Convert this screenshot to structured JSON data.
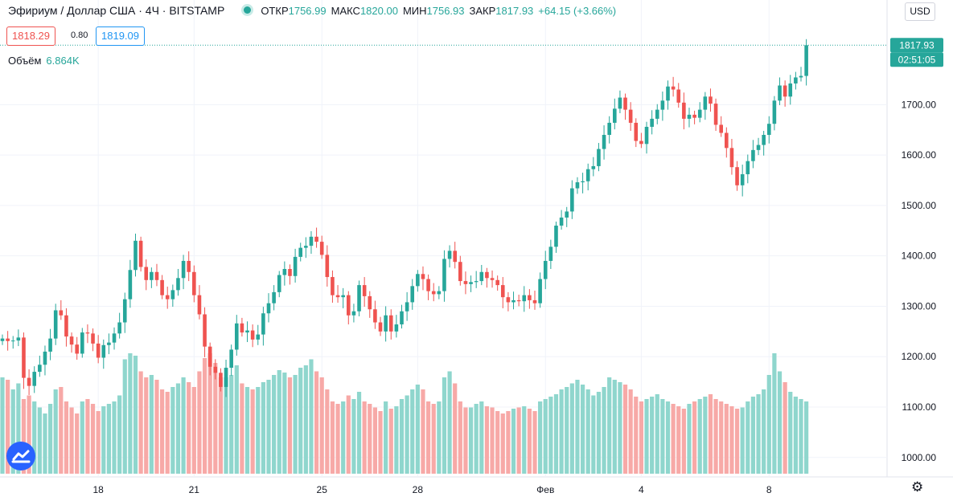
{
  "header": {
    "symbol": "Эфириум / Доллар США · 4Ч · BITSTAMP",
    "open_label": "ОТКР",
    "open": "1756.99",
    "high_label": "МАКС",
    "high": "1820.00",
    "low_label": "МИН",
    "low": "1756.93",
    "close_label": "ЗАКР",
    "close": "1817.93",
    "change": "+64.15 (+3.66%)"
  },
  "quote": {
    "bid": "1818.29",
    "spread": "0.80",
    "ask": "1819.09"
  },
  "volume": {
    "label": "Объём",
    "value": "6.864K"
  },
  "currency_button": "USD",
  "price_tag": {
    "price": "1817.93",
    "countdown": "02:51:05"
  },
  "colors": {
    "up": "#26a69a",
    "down": "#ef5350",
    "up_vol": "#8fd6cd",
    "down_vol": "#f7a9a7",
    "axis_text": "#131722"
  },
  "icons": {
    "logo": "tradingview-logo-icon",
    "settings": "gear-icon"
  },
  "chart_data": {
    "type": "candlestick",
    "ylim": [
      980,
      1880
    ],
    "y_ticks": [
      "1000.00",
      "1100.00",
      "1200.00",
      "1300.00",
      "1400.00",
      "1500.00",
      "1600.00",
      "1700.00"
    ],
    "x_ticks": [
      {
        "label": "18",
        "index": 18
      },
      {
        "label": "21",
        "index": 36
      },
      {
        "label": "25",
        "index": 60
      },
      {
        "label": "28",
        "index": 78
      },
      {
        "label": "Фев",
        "index": 102
      },
      {
        "label": "4",
        "index": 120
      },
      {
        "label": "8",
        "index": 144
      }
    ],
    "grid": true,
    "last_close": 1817.93,
    "close": [
      1236,
      1231,
      1232,
      1238,
      1158,
      1142,
      1170,
      1184,
      1210,
      1236,
      1292,
      1282,
      1240,
      1224,
      1206,
      1248,
      1246,
      1226,
      1198,
      1223,
      1228,
      1246,
      1268,
      1314,
      1372,
      1430,
      1378,
      1352,
      1368,
      1352,
      1322,
      1314,
      1332,
      1356,
      1390,
      1368,
      1322,
      1284,
      1220,
      1180,
      1168,
      1140,
      1178,
      1214,
      1266,
      1248,
      1252,
      1234,
      1244,
      1286,
      1306,
      1328,
      1362,
      1374,
      1360,
      1398,
      1416,
      1420,
      1438,
      1428,
      1402,
      1358,
      1322,
      1318,
      1322,
      1282,
      1290,
      1342,
      1320,
      1294,
      1268,
      1250,
      1282,
      1250,
      1264,
      1290,
      1308,
      1340,
      1364,
      1354,
      1330,
      1324,
      1330,
      1394,
      1410,
      1388,
      1350,
      1344,
      1348,
      1350,
      1368,
      1356,
      1352,
      1342,
      1318,
      1308,
      1312,
      1310,
      1322,
      1312,
      1306,
      1354,
      1390,
      1418,
      1460,
      1476,
      1488,
      1534,
      1546,
      1548,
      1572,
      1578,
      1612,
      1640,
      1664,
      1692,
      1714,
      1690,
      1664,
      1628,
      1622,
      1656,
      1672,
      1690,
      1708,
      1736,
      1730,
      1704,
      1672,
      1680,
      1674,
      1690,
      1716,
      1702,
      1660,
      1644,
      1614,
      1576,
      1540,
      1562,
      1588,
      1610,
      1620,
      1640,
      1662,
      1708,
      1738,
      1716,
      1742,
      1754,
      1757,
      1817.93
    ],
    "volume": [
      80,
      78,
      70,
      75,
      62,
      65,
      60,
      55,
      50,
      58,
      70,
      72,
      60,
      55,
      50,
      60,
      62,
      58,
      52,
      56,
      58,
      60,
      65,
      95,
      100,
      98,
      85,
      80,
      82,
      78,
      70,
      68,
      72,
      75,
      80,
      76,
      72,
      85,
      96,
      100,
      92,
      80,
      80,
      82,
      90,
      75,
      72,
      70,
      72,
      76,
      78,
      82,
      86,
      84,
      80,
      82,
      88,
      90,
      95,
      85,
      80,
      70,
      60,
      58,
      60,
      65,
      62,
      68,
      60,
      58,
      55,
      52,
      60,
      54,
      56,
      62,
      65,
      70,
      74,
      70,
      60,
      58,
      60,
      80,
      85,
      75,
      60,
      55,
      55,
      58,
      60,
      56,
      55,
      52,
      50,
      52,
      54,
      55,
      56,
      54,
      52,
      60,
      62,
      64,
      66,
      70,
      72,
      75,
      78,
      74,
      70,
      65,
      68,
      72,
      80,
      78,
      76,
      74,
      70,
      64,
      60,
      62,
      64,
      66,
      62,
      60,
      58,
      56,
      54,
      58,
      60,
      62,
      64,
      66,
      62,
      60,
      58,
      56,
      54,
      55,
      60,
      64,
      66,
      70,
      82,
      100,
      85,
      76,
      68,
      64,
      62,
      60
    ]
  }
}
